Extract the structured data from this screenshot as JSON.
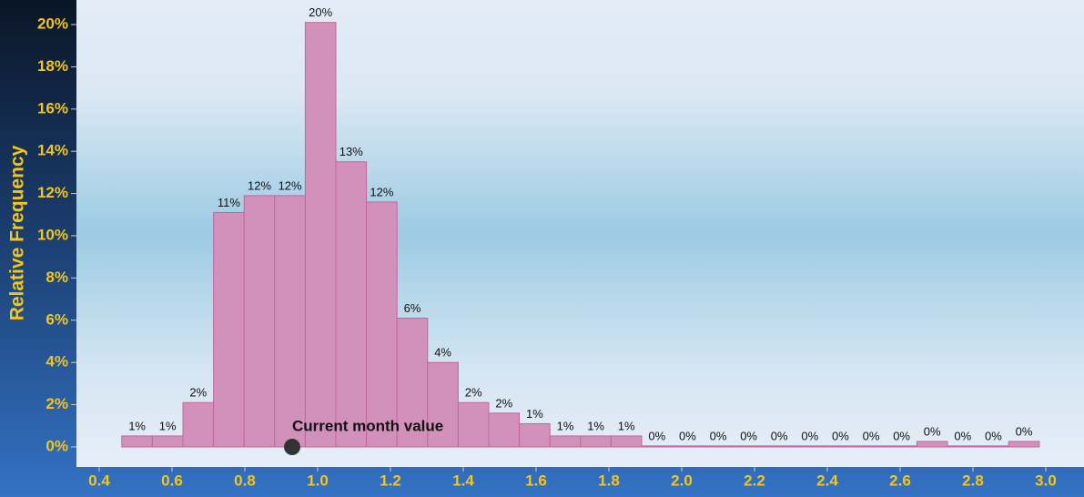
{
  "chart_data": {
    "type": "histogram",
    "ylabel": "Relative Frequency",
    "bins": [
      0.462,
      0.546,
      0.63,
      0.714,
      0.798,
      0.882,
      0.966,
      1.05,
      1.134,
      1.218,
      1.302,
      1.386,
      1.47,
      1.554,
      1.638,
      1.722,
      1.806,
      1.89,
      1.974,
      2.058,
      2.142,
      2.226,
      2.31,
      2.394,
      2.478,
      2.562,
      2.646,
      2.73,
      2.814,
      2.898,
      2.982
    ],
    "values": [
      0.52,
      0.52,
      2.1,
      11.1,
      11.9,
      11.9,
      20.1,
      13.5,
      11.6,
      6.1,
      4.0,
      2.1,
      1.6,
      1.1,
      0.52,
      0.52,
      0.52,
      0.05,
      0.05,
      0.05,
      0.05,
      0.05,
      0.05,
      0.05,
      0.05,
      0.05,
      0.26,
      0.05,
      0.05,
      0.26
    ],
    "value_labels": [
      "1%",
      "1%",
      "2%",
      "11%",
      "12%",
      "12%",
      "20%",
      "13%",
      "12%",
      "6%",
      "4%",
      "2%",
      "2%",
      "1%",
      "1%",
      "1%",
      "1%",
      "0%",
      "0%",
      "0%",
      "0%",
      "0%",
      "0%",
      "0%",
      "0%",
      "0%",
      "0%",
      "0%",
      "0%",
      "0%"
    ],
    "color": "#d291bb",
    "edge_color": "#c2669f",
    "xlim": [
      0.4,
      3.0
    ],
    "xticks": [
      0.4,
      0.6,
      0.8,
      {
        "value": 1.0,
        "label": "1.0"
      },
      1.2,
      1.4,
      1.6,
      1.8,
      {
        "value": 2.0,
        "label": "2.0"
      },
      2.2,
      2.4,
      2.6,
      2.8,
      {
        "value": 3.0,
        "label": "3.0"
      }
    ],
    "ylim": [
      0,
      20
    ],
    "yticks": [
      {
        "value": 0,
        "label": "0%"
      },
      {
        "value": 2,
        "label": "2%"
      },
      {
        "value": 4,
        "label": "4%"
      },
      {
        "value": 6,
        "label": "6%"
      },
      {
        "value": 8,
        "label": "8%"
      },
      {
        "value": 10,
        "label": "10%"
      },
      {
        "value": 12,
        "label": "12%"
      },
      {
        "value": 14,
        "label": "14%"
      },
      {
        "value": 16,
        "label": "16%"
      },
      {
        "value": 18,
        "label": "18%"
      },
      {
        "value": 20,
        "label": "20%"
      }
    ],
    "marker": {
      "label": "Current month value",
      "x": 0.93,
      "y": 0
    }
  }
}
